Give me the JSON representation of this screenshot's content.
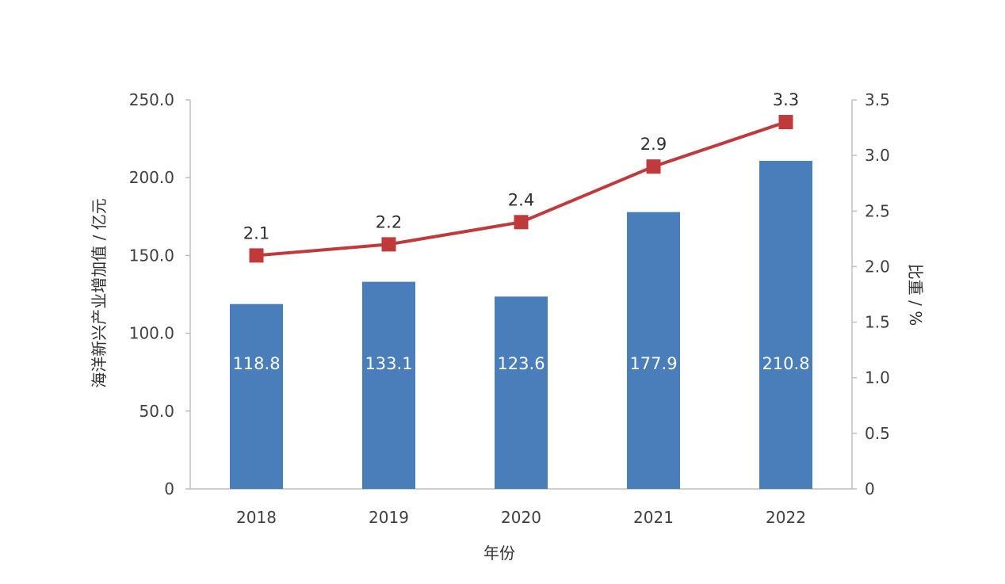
{
  "chart_data": {
    "type": "bar",
    "categories": [
      "2018",
      "2019",
      "2020",
      "2021",
      "2022"
    ],
    "xlabel": "年份",
    "series": [
      {
        "name": "海洋新兴产业增加值",
        "type": "bar",
        "axis": "left",
        "values": [
          118.8,
          133.1,
          123.6,
          177.9,
          210.8
        ],
        "labels": [
          "118.8",
          "133.1",
          "123.6",
          "177.9",
          "210.8"
        ],
        "color": "#4a7ebb"
      },
      {
        "name": "比重",
        "type": "line",
        "axis": "right",
        "values": [
          2.1,
          2.2,
          2.4,
          2.9,
          3.3
        ],
        "labels": [
          "2.1",
          "2.2",
          "2.4",
          "2.9",
          "3.3"
        ],
        "color": "#c0393b"
      }
    ],
    "y_left": {
      "label": "海洋新兴产业增加值 / 亿元",
      "range": [
        0,
        250
      ],
      "ticks": [
        0,
        50,
        100,
        150,
        200,
        250
      ],
      "tick_labels": [
        "0",
        "50.0",
        "100.0",
        "150.0",
        "200.0",
        "250.0"
      ]
    },
    "y_right": {
      "label": "比重 / %",
      "range": [
        0,
        3.5
      ],
      "ticks": [
        0,
        0.5,
        1,
        1.5,
        2,
        2.5,
        3,
        3.5
      ],
      "tick_labels": [
        "0",
        "0.5",
        "1.0",
        "1.5",
        "2.0",
        "2.5",
        "3.0",
        "3.5"
      ]
    },
    "axis_color": "#bfbfbf",
    "grid": false
  }
}
